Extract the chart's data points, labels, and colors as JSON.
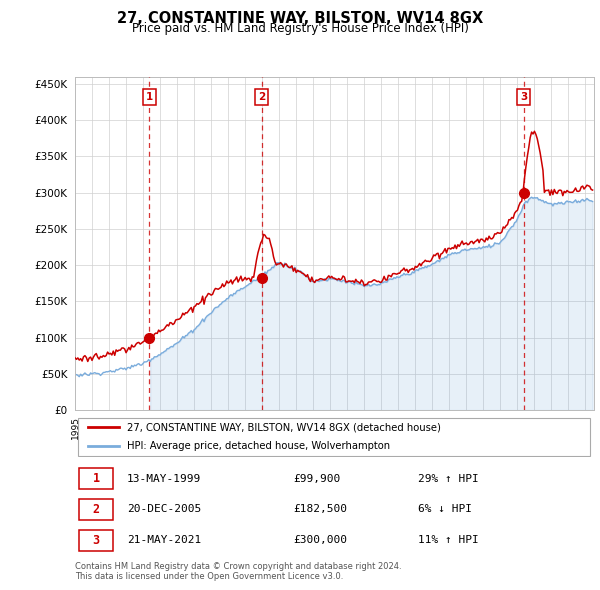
{
  "title": "27, CONSTANTINE WAY, BILSTON, WV14 8GX",
  "subtitle": "Price paid vs. HM Land Registry's House Price Index (HPI)",
  "footer1": "Contains HM Land Registry data © Crown copyright and database right 2024.",
  "footer2": "This data is licensed under the Open Government Licence v3.0.",
  "legend_label_red": "27, CONSTANTINE WAY, BILSTON, WV14 8GX (detached house)",
  "legend_label_blue": "HPI: Average price, detached house, Wolverhampton",
  "transactions": [
    {
      "num": 1,
      "date": "13-MAY-1999",
      "price": "£99,900",
      "rel": "29% ↑ HPI"
    },
    {
      "num": 2,
      "date": "20-DEC-2005",
      "price": "£182,500",
      "rel": "6% ↓ HPI"
    },
    {
      "num": 3,
      "date": "21-MAY-2021",
      "price": "£300,000",
      "rel": "11% ↑ HPI"
    }
  ],
  "ylim": [
    0,
    460000
  ],
  "yticks": [
    0,
    50000,
    100000,
    150000,
    200000,
    250000,
    300000,
    350000,
    400000,
    450000
  ],
  "red_color": "#cc0000",
  "blue_color": "#7aacdc",
  "sale_years": [
    1999.37,
    2005.97,
    2021.38
  ],
  "sale_prices": [
    99900,
    182500,
    300000
  ],
  "background_color": "#ffffff"
}
